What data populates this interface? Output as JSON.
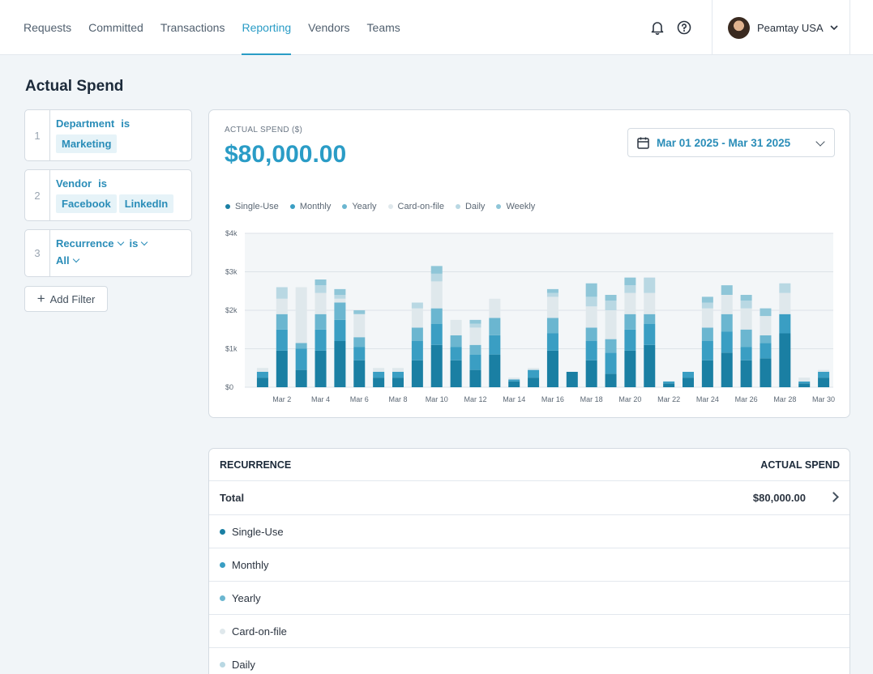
{
  "nav": {
    "items": [
      {
        "label": "Requests",
        "active": false
      },
      {
        "label": "Committed",
        "active": false
      },
      {
        "label": "Transactions",
        "active": false
      },
      {
        "label": "Reporting",
        "active": true
      },
      {
        "label": "Vendors",
        "active": false
      },
      {
        "label": "Teams",
        "active": false
      }
    ],
    "icons": [
      "bell-icon",
      "help-icon"
    ],
    "account_name": "Peamtay USA"
  },
  "page": {
    "title": "Actual Spend"
  },
  "filters": [
    {
      "num": "1",
      "field": "Department",
      "op": "is",
      "values": [
        "Marketing"
      ]
    },
    {
      "num": "2",
      "field": "Vendor",
      "op": "is",
      "values": [
        "Facebook",
        "LinkedIn"
      ]
    },
    {
      "num": "3",
      "field": "Recurrence",
      "op": "is",
      "values": [
        "All"
      ]
    }
  ],
  "add_filter_label": "Add Filter",
  "summary": {
    "label": "ACTUAL SPEND ($)",
    "value": "$80,000.00",
    "date_range": "Mar 01 2025 - Mar 31 2025"
  },
  "colors": {
    "accent": "#2a9cc6",
    "single_use": "#1a7fa3",
    "monthly": "#3a9ec3",
    "yearly": "#6bb6d0",
    "card_on_file": "#dfe8ec",
    "daily": "#b9d8e3",
    "weekly": "#8fc6d8"
  },
  "chart_data": {
    "type": "bar",
    "stacked": true,
    "categories": [
      "Mar 1",
      "Mar 2",
      "Mar 3",
      "Mar 4",
      "Mar 5",
      "Mar 6",
      "Mar 7",
      "Mar 8",
      "Mar 9",
      "Mar 10",
      "Mar 11",
      "Mar 12",
      "Mar 13",
      "Mar 14",
      "Mar 15",
      "Mar 16",
      "Mar 17",
      "Mar 18",
      "Mar 19",
      "Mar 20",
      "Mar 21",
      "Mar 22",
      "Mar 23",
      "Mar 24",
      "Mar 25",
      "Mar 26",
      "Mar 27",
      "Mar 28",
      "Mar 29",
      "Mar 30"
    ],
    "tick_labels": [
      "Mar 2",
      "Mar 4",
      "Mar 6",
      "Mar 8",
      "Mar 10",
      "Mar 12",
      "Mar 14",
      "Mar 16",
      "Mar 18",
      "Mar 20",
      "Mar 22",
      "Mar 24",
      "Mar 26",
      "Mar 28",
      "Mar 30"
    ],
    "series": [
      {
        "name": "Single-Use",
        "color": "#1a7fa3",
        "values": [
          250,
          950,
          450,
          950,
          1200,
          700,
          250,
          250,
          700,
          1100,
          700,
          450,
          850,
          150,
          250,
          950,
          400,
          700,
          350,
          950,
          1100,
          100,
          250,
          700,
          900,
          700,
          750,
          1400,
          100,
          250
        ]
      },
      {
        "name": "Monthly",
        "color": "#3a9ec3",
        "values": [
          150,
          550,
          550,
          550,
          550,
          350,
          150,
          150,
          500,
          550,
          350,
          400,
          500,
          50,
          200,
          450,
          0,
          500,
          550,
          550,
          550,
          50,
          150,
          500,
          550,
          350,
          400,
          500,
          50,
          150
        ]
      },
      {
        "name": "Yearly",
        "color": "#6bb6d0",
        "values": [
          0,
          400,
          150,
          400,
          450,
          250,
          0,
          0,
          350,
          400,
          300,
          250,
          450,
          0,
          0,
          400,
          0,
          350,
          350,
          400,
          250,
          0,
          0,
          350,
          450,
          450,
          200,
          0,
          0,
          0
        ]
      },
      {
        "name": "Card-on-file",
        "color": "#dfe8ec",
        "values": [
          100,
          400,
          1450,
          550,
          100,
          600,
          100,
          100,
          500,
          700,
          400,
          450,
          500,
          50,
          50,
          550,
          0,
          550,
          750,
          550,
          550,
          0,
          0,
          500,
          500,
          550,
          500,
          550,
          100,
          50
        ]
      },
      {
        "name": "Daily",
        "color": "#b9d8e3",
        "values": [
          0,
          300,
          0,
          200,
          100,
          0,
          0,
          0,
          150,
          200,
          0,
          100,
          0,
          0,
          0,
          100,
          0,
          250,
          250,
          200,
          400,
          0,
          0,
          150,
          0,
          200,
          0,
          250,
          0,
          0
        ]
      },
      {
        "name": "Weekly",
        "color": "#8fc6d8",
        "values": [
          0,
          0,
          0,
          150,
          150,
          100,
          0,
          0,
          0,
          200,
          0,
          100,
          0,
          0,
          0,
          100,
          0,
          350,
          150,
          200,
          0,
          0,
          0,
          150,
          250,
          150,
          200,
          0,
          0,
          0
        ]
      }
    ],
    "y_ticks": [
      "$0",
      "$1k",
      "$2k",
      "$3k",
      "$4k"
    ],
    "ylim": [
      0,
      4000
    ],
    "title": "",
    "xlabel": "",
    "ylabel": "",
    "grid": true,
    "legend_position": "top-left"
  },
  "table": {
    "col_recurrence": "RECURRENCE",
    "col_actual": "ACTUAL SPEND",
    "total_label": "Total",
    "total_value": "$80,000.00",
    "rows": [
      {
        "label": "Single-Use",
        "color": "#1a7fa3"
      },
      {
        "label": "Monthly",
        "color": "#3a9ec3"
      },
      {
        "label": "Yearly",
        "color": "#6bb6d0"
      },
      {
        "label": "Card-on-file",
        "color": "#dfe8ec"
      },
      {
        "label": "Daily",
        "color": "#b9d8e3"
      }
    ]
  }
}
